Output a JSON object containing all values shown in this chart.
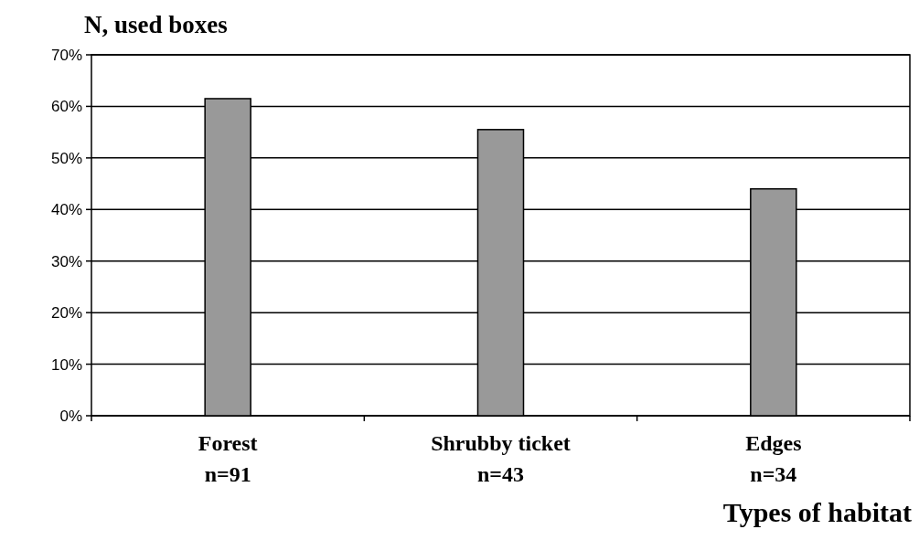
{
  "chart_data": {
    "type": "bar",
    "title": "N, used boxes",
    "xlabel": "Types of habitat",
    "categories": [
      "Forest\nn=91",
      "Shrubby ticket\nn=43",
      "Edges\nn=34"
    ],
    "values": [
      61.5,
      55.5,
      44
    ],
    "color": "#999999",
    "ylim": [
      0,
      70
    ],
    "yticks": [
      {
        "value": 0,
        "label": "0%"
      },
      {
        "value": 10,
        "label": "10%"
      },
      {
        "value": 20,
        "label": "20%"
      },
      {
        "value": 30,
        "label": "30%"
      },
      {
        "value": 40,
        "label": "40%"
      },
      {
        "value": 50,
        "label": "50%"
      },
      {
        "value": 60,
        "label": "60%"
      },
      {
        "value": 70,
        "label": "70%"
      }
    ],
    "grid": "y"
  }
}
